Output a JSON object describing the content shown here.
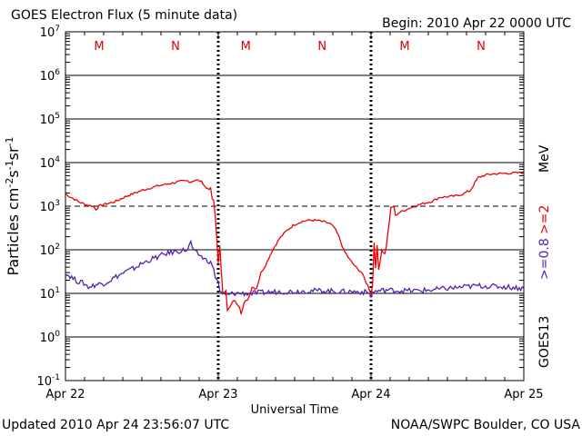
{
  "header": {
    "title": "GOES Electron Flux (5 minute data)",
    "begin": "Begin: 2010 Apr 22 0000 UTC"
  },
  "footer": {
    "updated": "Updated 2010 Apr 24 23:56:07 UTC",
    "source": "NOAA/SWPC Boulder, CO USA"
  },
  "chart_data": {
    "type": "line",
    "title": "GOES Electron Flux (5 minute data)",
    "xlabel": "Universal Time",
    "ylabel": "Particles cm-2s-1sr-1",
    "x_ticks": [
      "Apr 22",
      "Apr 23",
      "Apr 24",
      "Apr 25"
    ],
    "xlim_days": [
      0,
      3
    ],
    "ylim_log10": [
      -1,
      7
    ],
    "y_scale": "log",
    "y_tick_exponents": [
      -1,
      0,
      1,
      2,
      3,
      4,
      5,
      6,
      7
    ],
    "y_tick_base": "10",
    "dashed_threshold_exponent": 3,
    "day_markers": [
      "M",
      "N",
      "M",
      "N",
      "M",
      "N"
    ],
    "day_marker_positions": [
      0.22,
      0.72,
      1.18,
      1.68,
      2.22,
      2.72
    ],
    "satellite": "GOES13",
    "series": [
      {
        "name": ">=2",
        "color": "#ee0000",
        "points": [
          [
            0.0,
            1900
          ],
          [
            0.05,
            1500
          ],
          [
            0.1,
            1200
          ],
          [
            0.15,
            1050
          ],
          [
            0.18,
            1000
          ],
          [
            0.2,
            850
          ],
          [
            0.22,
            1000
          ],
          [
            0.25,
            1100
          ],
          [
            0.3,
            1200
          ],
          [
            0.33,
            1300
          ],
          [
            0.4,
            1700
          ],
          [
            0.5,
            2300
          ],
          [
            0.6,
            2900
          ],
          [
            0.7,
            3400
          ],
          [
            0.75,
            3700
          ],
          [
            0.8,
            3800
          ],
          [
            0.82,
            3600
          ],
          [
            0.85,
            4000
          ],
          [
            0.88,
            3800
          ],
          [
            0.9,
            3400
          ],
          [
            0.92,
            2600
          ],
          [
            0.95,
            2500
          ],
          [
            0.96,
            1500
          ],
          [
            0.97,
            1300
          ],
          [
            0.98,
            600
          ],
          [
            0.99,
            200
          ],
          [
            1.0,
            50
          ],
          [
            1.01,
            120
          ],
          [
            1.02,
            30
          ],
          [
            1.03,
            10
          ],
          [
            1.05,
            12
          ],
          [
            1.06,
            4
          ],
          [
            1.08,
            5
          ],
          [
            1.1,
            7
          ],
          [
            1.12,
            6
          ],
          [
            1.14,
            5
          ],
          [
            1.15,
            3.5
          ],
          [
            1.17,
            6
          ],
          [
            1.2,
            8
          ],
          [
            1.22,
            14
          ],
          [
            1.25,
            13
          ],
          [
            1.28,
            30
          ],
          [
            1.31,
            45
          ],
          [
            1.35,
            90
          ],
          [
            1.4,
            180
          ],
          [
            1.45,
            280
          ],
          [
            1.5,
            380
          ],
          [
            1.55,
            450
          ],
          [
            1.6,
            480
          ],
          [
            1.65,
            470
          ],
          [
            1.7,
            430
          ],
          [
            1.73,
            400
          ],
          [
            1.76,
            320
          ],
          [
            1.79,
            200
          ],
          [
            1.82,
            100
          ],
          [
            1.86,
            60
          ],
          [
            1.9,
            40
          ],
          [
            1.94,
            30
          ],
          [
            1.96,
            20
          ],
          [
            1.98,
            15
          ],
          [
            1.99,
            12
          ],
          [
            2.0,
            10
          ],
          [
            2.01,
            15
          ],
          [
            2.02,
            150
          ],
          [
            2.03,
            40
          ],
          [
            2.04,
            120
          ],
          [
            2.05,
            35
          ],
          [
            2.07,
            100
          ],
          [
            2.09,
            80
          ],
          [
            2.1,
            120
          ],
          [
            2.13,
            900
          ],
          [
            2.15,
            1000
          ],
          [
            2.16,
            600
          ],
          [
            2.18,
            700
          ],
          [
            2.25,
            900
          ],
          [
            2.32,
            1100
          ],
          [
            2.4,
            1300
          ],
          [
            2.45,
            1600
          ],
          [
            2.55,
            1700
          ],
          [
            2.6,
            1900
          ],
          [
            2.65,
            2300
          ],
          [
            2.7,
            4500
          ],
          [
            2.75,
            5200
          ],
          [
            2.8,
            5500
          ],
          [
            2.85,
            5600
          ],
          [
            2.9,
            5700
          ],
          [
            2.95,
            5800
          ],
          [
            3.0,
            5900
          ]
        ]
      },
      {
        "name": ">=0.8",
        "color": "#5522aa",
        "points": [
          [
            0.0,
            28
          ],
          [
            0.03,
            25
          ],
          [
            0.05,
            22
          ],
          [
            0.08,
            19
          ],
          [
            0.12,
            17
          ],
          [
            0.15,
            14
          ],
          [
            0.18,
            15
          ],
          [
            0.2,
            16
          ],
          [
            0.25,
            17
          ],
          [
            0.28,
            19
          ],
          [
            0.32,
            23
          ],
          [
            0.35,
            26
          ],
          [
            0.4,
            32
          ],
          [
            0.45,
            38
          ],
          [
            0.5,
            48
          ],
          [
            0.55,
            58
          ],
          [
            0.6,
            68
          ],
          [
            0.65,
            80
          ],
          [
            0.7,
            88
          ],
          [
            0.75,
            95
          ],
          [
            0.8,
            100
          ],
          [
            0.82,
            150
          ],
          [
            0.84,
            90
          ],
          [
            0.88,
            75
          ],
          [
            0.9,
            65
          ],
          [
            0.92,
            58
          ],
          [
            0.94,
            55
          ],
          [
            0.96,
            45
          ],
          [
            0.98,
            25
          ],
          [
            1.0,
            18
          ],
          [
            1.01,
            12
          ],
          [
            1.02,
            10
          ],
          [
            1.05,
            9
          ],
          [
            1.1,
            10
          ],
          [
            1.2,
            10
          ],
          [
            1.3,
            10.5
          ],
          [
            1.4,
            11
          ],
          [
            1.5,
            11
          ],
          [
            1.6,
            11.5
          ],
          [
            1.7,
            11.5
          ],
          [
            1.8,
            11
          ],
          [
            1.9,
            11
          ],
          [
            1.98,
            10.5
          ],
          [
            2.0,
            9
          ],
          [
            2.02,
            11
          ],
          [
            2.1,
            12
          ],
          [
            2.2,
            11.5
          ],
          [
            2.3,
            11.5
          ],
          [
            2.4,
            12
          ],
          [
            2.5,
            13
          ],
          [
            2.6,
            14
          ],
          [
            2.7,
            15
          ],
          [
            2.8,
            14.5
          ],
          [
            2.9,
            14
          ],
          [
            3.0,
            13
          ]
        ]
      }
    ]
  }
}
